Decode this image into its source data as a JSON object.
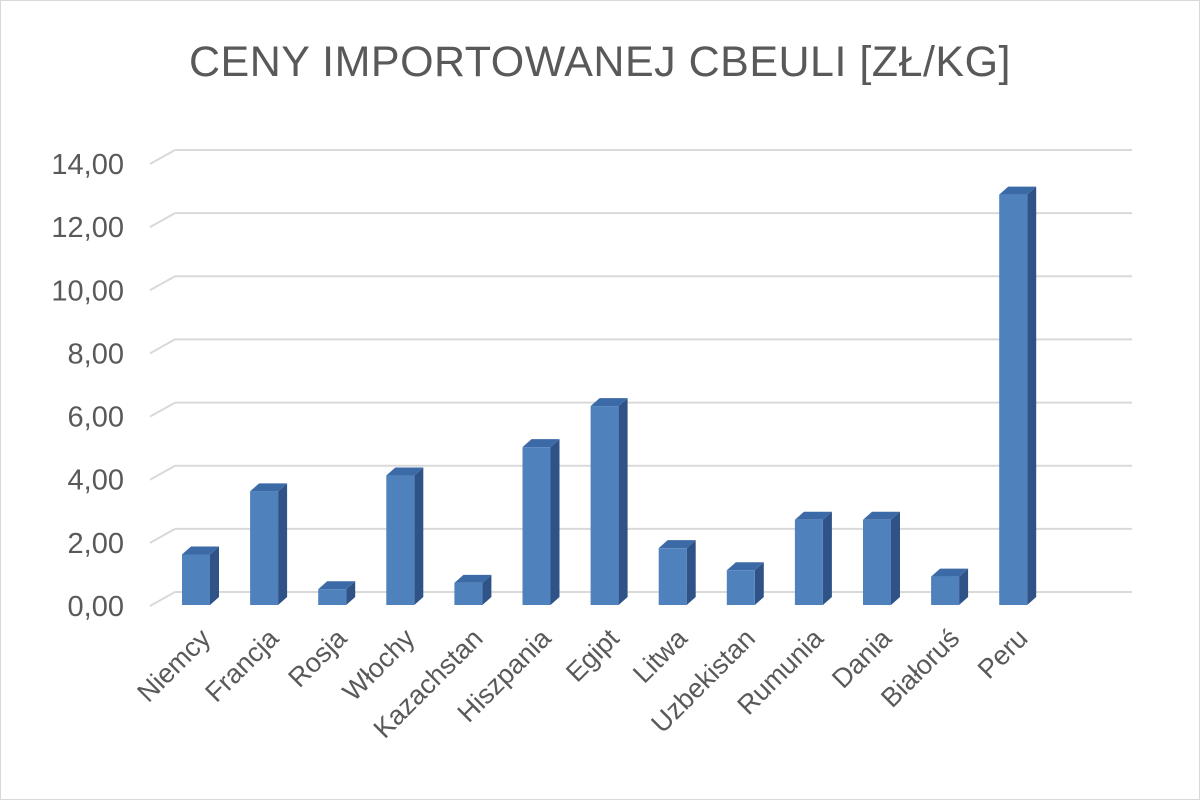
{
  "chart_data": {
    "type": "bar",
    "title": "CENY IMPORTOWANEJ CBEULI [ZŁ/KG]",
    "xlabel": "",
    "ylabel": "",
    "categories": [
      "Niemcy",
      "Francja",
      "Rosja",
      "Włochy",
      "Kazachstan",
      "Hiszpania",
      "Egipt",
      "Litwa",
      "Uzbekistan",
      "Rumunia",
      "Dania",
      "Białoruś",
      "Peru"
    ],
    "values": [
      1.6,
      3.6,
      0.5,
      4.1,
      0.7,
      5.0,
      6.3,
      1.8,
      1.1,
      2.7,
      2.7,
      0.9,
      13.0
    ],
    "ylim": [
      0,
      14
    ],
    "yticks": [
      "0,00",
      "2,00",
      "4,00",
      "6,00",
      "8,00",
      "10,00",
      "12,00",
      "14,00"
    ],
    "grid": true,
    "legend": "none",
    "style": "3d-column",
    "colors": {
      "bar_front": "#4f81bd",
      "bar_side": "#2f5287",
      "bar_top": "#3c6aa6",
      "grid": "#d9d9d9",
      "text": "#595959"
    }
  }
}
